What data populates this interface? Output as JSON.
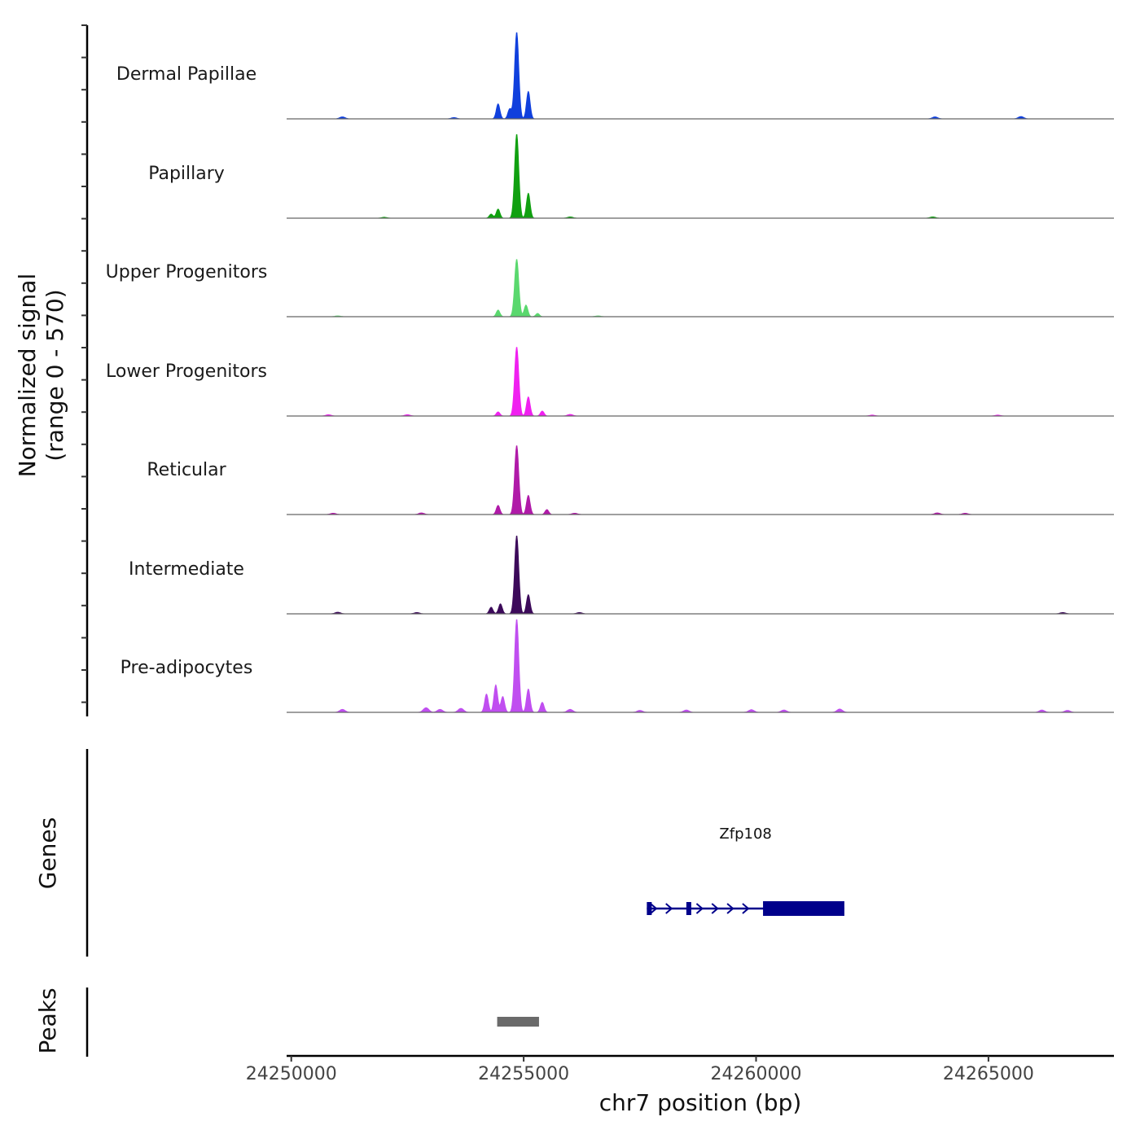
{
  "chart_data": {
    "type": "area",
    "title": "",
    "ylabel_line1": "Normalized signal",
    "ylabel_line2": "(range 0 - 570)",
    "xlabel": "chr7 position (bp)",
    "chromosome": "chr7",
    "xlim": [
      24249900,
      24267700
    ],
    "ylim": [
      0,
      570
    ],
    "xticks": [
      {
        "value": 24250000,
        "label": "24250000"
      },
      {
        "value": 24255000,
        "label": "24255000"
      },
      {
        "value": 24260000,
        "label": "24260000"
      },
      {
        "value": 24265000,
        "label": "24265000"
      }
    ],
    "summit_position": 24254850,
    "tracks": [
      {
        "name": "Dermal Papillae",
        "color": "#1040dd",
        "peak": 520,
        "side_peaks": [
          [
            24254450,
            90
          ],
          [
            24255100,
            165
          ],
          [
            24254700,
            60
          ]
        ],
        "minor": [
          [
            24251100,
            12
          ],
          [
            24253500,
            8
          ],
          [
            24263850,
            12
          ],
          [
            24265700,
            14
          ]
        ]
      },
      {
        "name": "Papillary",
        "color": "#10a010",
        "peak": 505,
        "side_peaks": [
          [
            24254450,
            55
          ],
          [
            24255100,
            150
          ],
          [
            24254300,
            25
          ]
        ],
        "minor": [
          [
            24252000,
            6
          ],
          [
            24256000,
            8
          ],
          [
            24263800,
            8
          ]
        ]
      },
      {
        "name": "Upper Progenitors",
        "color": "#5ad86e",
        "peak": 345,
        "side_peaks": [
          [
            24254450,
            40
          ],
          [
            24255050,
            70
          ],
          [
            24255300,
            20
          ]
        ],
        "minor": [
          [
            24251000,
            5
          ],
          [
            24256600,
            5
          ]
        ]
      },
      {
        "name": "Lower Progenitors",
        "color": "#f020f0",
        "peak": 415,
        "side_peaks": [
          [
            24254450,
            25
          ],
          [
            24255100,
            115
          ],
          [
            24255400,
            30
          ]
        ],
        "minor": [
          [
            24250800,
            8
          ],
          [
            24252500,
            8
          ],
          [
            24256000,
            10
          ],
          [
            24262500,
            6
          ],
          [
            24265200,
            6
          ]
        ]
      },
      {
        "name": "Reticular",
        "color": "#b01aa8",
        "peak": 415,
        "side_peaks": [
          [
            24254450,
            55
          ],
          [
            24255100,
            115
          ],
          [
            24255500,
            30
          ]
        ],
        "minor": [
          [
            24250900,
            8
          ],
          [
            24252800,
            10
          ],
          [
            24256100,
            8
          ],
          [
            24263900,
            10
          ],
          [
            24264500,
            8
          ]
        ]
      },
      {
        "name": "Intermediate",
        "color": "#3c0a5a",
        "peak": 470,
        "side_peaks": [
          [
            24254300,
            40
          ],
          [
            24254500,
            60
          ],
          [
            24255100,
            115
          ]
        ],
        "minor": [
          [
            24251000,
            10
          ],
          [
            24252700,
            8
          ],
          [
            24256200,
            8
          ],
          [
            24266600,
            8
          ]
        ]
      },
      {
        "name": "Pre-adipocytes",
        "color": "#c04ef0",
        "peak": 560,
        "side_peaks": [
          [
            24254200,
            110
          ],
          [
            24254400,
            165
          ],
          [
            24254550,
            95
          ],
          [
            24255100,
            140
          ],
          [
            24255400,
            60
          ]
        ],
        "minor": [
          [
            24251100,
            18
          ],
          [
            24252900,
            28
          ],
          [
            24253200,
            18
          ],
          [
            24253650,
            24
          ],
          [
            24256000,
            18
          ],
          [
            24257500,
            12
          ],
          [
            24258500,
            14
          ],
          [
            24259900,
            16
          ],
          [
            24260600,
            14
          ],
          [
            24261800,
            20
          ],
          [
            24266150,
            14
          ],
          [
            24266700,
            12
          ]
        ]
      }
    ],
    "genes": [
      {
        "name": "Zfp108",
        "strand": "+",
        "start": 24257650,
        "end": 24261900,
        "exons": [
          [
            24257650,
            24257700
          ],
          [
            24258500,
            24258600
          ],
          [
            24260150,
            24261900
          ]
        ],
        "color": "#00008b"
      }
    ],
    "peaks": [
      {
        "start": 24254430,
        "end": 24255330,
        "color": "#6a6a6a"
      }
    ],
    "panel_labels": {
      "genes": "Genes",
      "peaks": "Peaks"
    }
  }
}
